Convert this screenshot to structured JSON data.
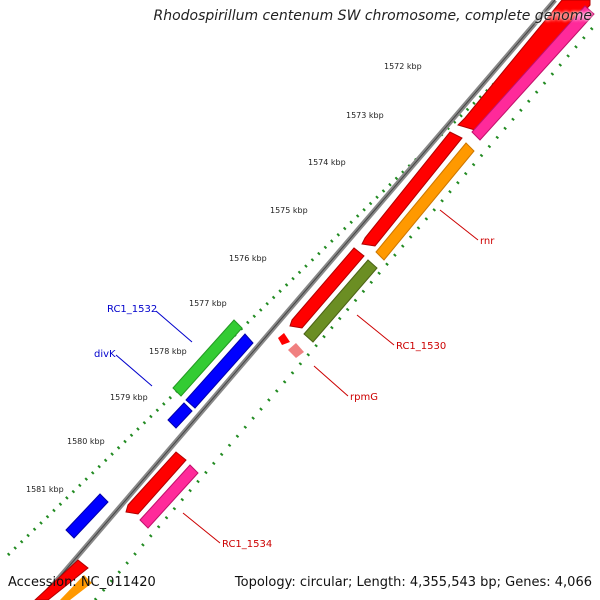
{
  "title": "Rhodospirillum centenum SW chromosome, complete genome",
  "accession_text": "Accession: NC_011420",
  "summary_text": "Topology: circular; Length: 4,355,543 bp; Genes: 4,066",
  "ticks": [
    {
      "label": "1572 kbp"
    },
    {
      "label": "1573 kbp"
    },
    {
      "label": "1574 kbp"
    },
    {
      "label": "1575 kbp"
    },
    {
      "label": "1576 kbp"
    },
    {
      "label": "1577 kbp"
    },
    {
      "label": "1578 kbp"
    },
    {
      "label": "1579 kbp"
    },
    {
      "label": "1580 kbp"
    },
    {
      "label": "1581 kbp"
    }
  ],
  "gene_labels": [
    {
      "name": "rnr",
      "color": "#cc0000"
    },
    {
      "name": "RC1_1530",
      "color": "#cc0000"
    },
    {
      "name": "rpmG",
      "color": "#cc0000"
    },
    {
      "name": "RC1_1534",
      "color": "#cc0000"
    },
    {
      "name": "RC1_1532",
      "color": "#0000cc"
    },
    {
      "name": "divK",
      "color": "#0000cc"
    }
  ],
  "colors": {
    "cds_red": "#ff0000",
    "rna_pink": "#ff2a9a",
    "orange": "#ff9900",
    "olive": "#6b8e23",
    "green": "#33cc33",
    "blue": "#0000ff",
    "backbone": "#888888",
    "tick_green": "#228b22"
  }
}
